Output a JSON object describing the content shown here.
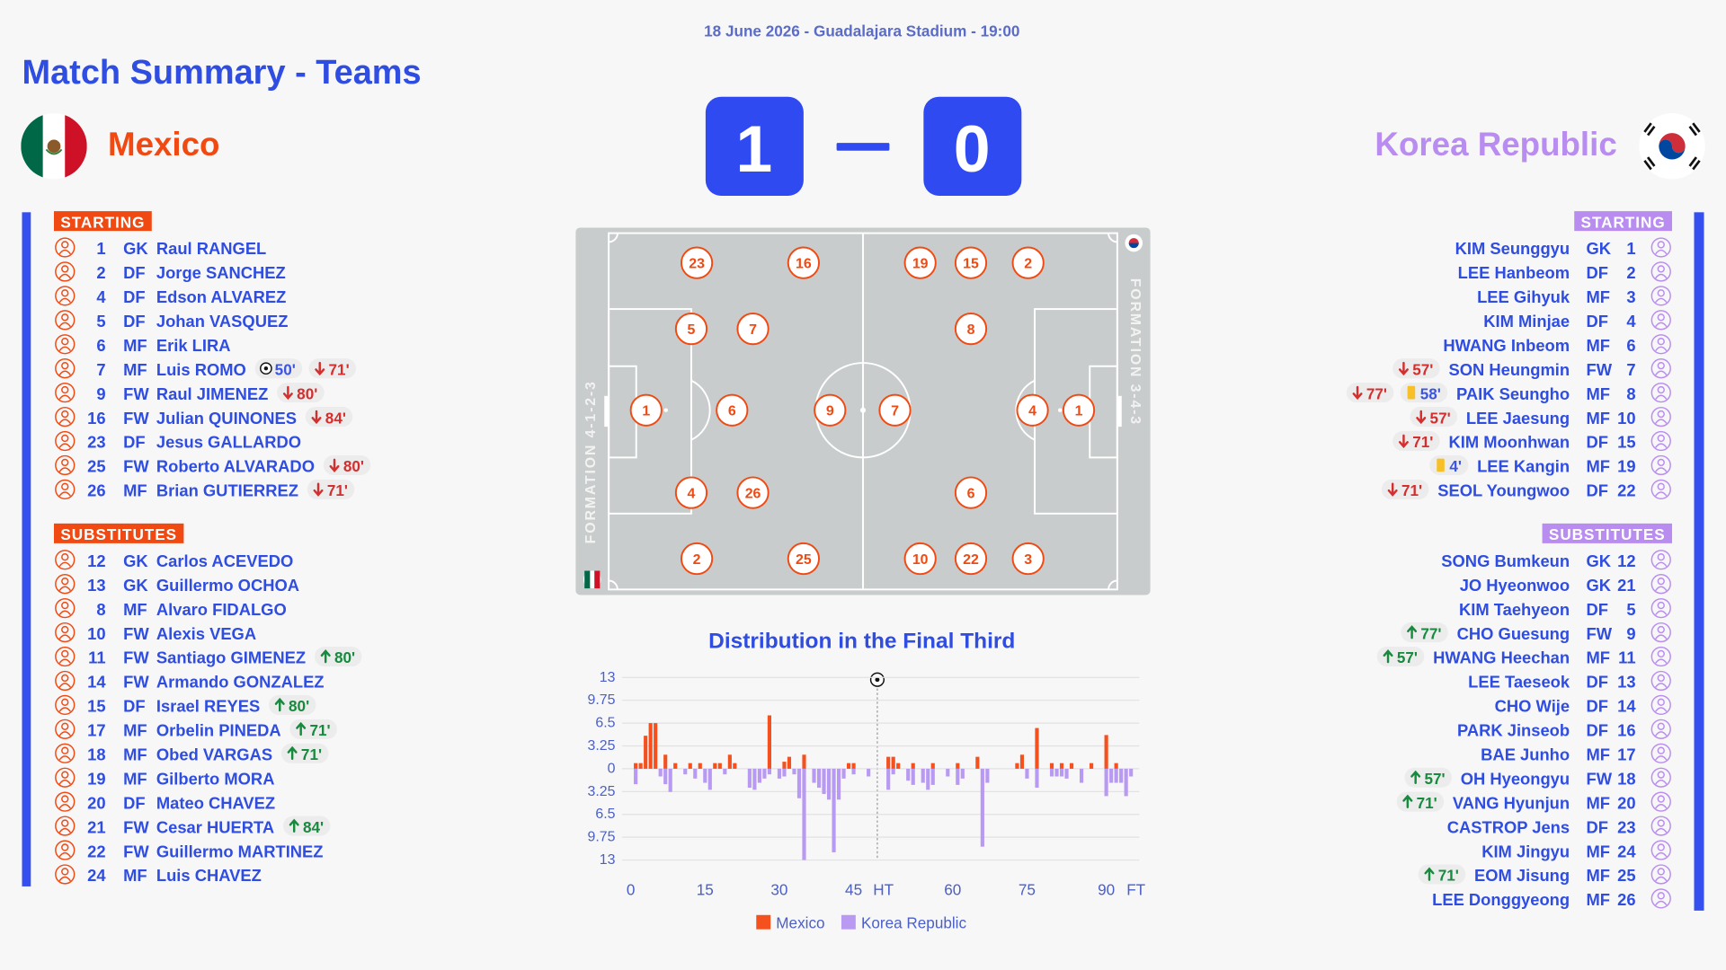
{
  "header": {
    "subtitle": "18 June 2026 - Guadalajara Stadium - 19:00",
    "title": "Match Summary - Teams"
  },
  "score": {
    "home": 1,
    "away": 0
  },
  "home": {
    "name": "Mexico",
    "starting_label": "STARTING",
    "substitutes_label": "SUBSTITUTES",
    "formation": "FORMATION 4-1-2-3",
    "pitch": [
      1,
      23,
      5,
      4,
      2,
      6,
      7,
      26,
      16,
      9,
      25
    ],
    "starting": [
      {
        "number": 1,
        "pos": "GK",
        "name": "Raul RANGEL"
      },
      {
        "number": 2,
        "pos": "DF",
        "name": "Jorge SANCHEZ"
      },
      {
        "number": 4,
        "pos": "DF",
        "name": "Edson ALVAREZ"
      },
      {
        "number": 5,
        "pos": "DF",
        "name": "Johan VASQUEZ"
      },
      {
        "number": 6,
        "pos": "MF",
        "name": "Erik LIRA"
      },
      {
        "number": 7,
        "pos": "MF",
        "name": "Luis ROMO",
        "events": [
          {
            "kind": "goal",
            "minute": "50'"
          },
          {
            "kind": "off",
            "minute": "71'"
          }
        ]
      },
      {
        "number": 9,
        "pos": "FW",
        "name": "Raul JIMENEZ",
        "events": [
          {
            "kind": "off",
            "minute": "80'"
          }
        ]
      },
      {
        "number": 16,
        "pos": "FW",
        "name": "Julian QUINONES",
        "events": [
          {
            "kind": "off",
            "minute": "84'"
          }
        ]
      },
      {
        "number": 23,
        "pos": "DF",
        "name": "Jesus GALLARDO"
      },
      {
        "number": 25,
        "pos": "FW",
        "name": "Roberto ALVARADO",
        "events": [
          {
            "kind": "off",
            "minute": "80'"
          }
        ]
      },
      {
        "number": 26,
        "pos": "MF",
        "name": "Brian GUTIERREZ",
        "events": [
          {
            "kind": "off",
            "minute": "71'"
          }
        ]
      }
    ],
    "substitutes": [
      {
        "number": 12,
        "pos": "GK",
        "name": "Carlos ACEVEDO"
      },
      {
        "number": 13,
        "pos": "GK",
        "name": "Guillermo OCHOA"
      },
      {
        "number": 8,
        "pos": "MF",
        "name": "Alvaro FIDALGO"
      },
      {
        "number": 10,
        "pos": "FW",
        "name": "Alexis VEGA"
      },
      {
        "number": 11,
        "pos": "FW",
        "name": "Santiago GIMENEZ",
        "events": [
          {
            "kind": "on",
            "minute": "80'"
          }
        ]
      },
      {
        "number": 14,
        "pos": "FW",
        "name": "Armando GONZALEZ"
      },
      {
        "number": 15,
        "pos": "DF",
        "name": "Israel REYES",
        "events": [
          {
            "kind": "on",
            "minute": "80'"
          }
        ]
      },
      {
        "number": 17,
        "pos": "MF",
        "name": "Orbelin PINEDA",
        "events": [
          {
            "kind": "on",
            "minute": "71'"
          }
        ]
      },
      {
        "number": 18,
        "pos": "MF",
        "name": "Obed VARGAS",
        "events": [
          {
            "kind": "on",
            "minute": "71'"
          }
        ]
      },
      {
        "number": 19,
        "pos": "MF",
        "name": "Gilberto MORA"
      },
      {
        "number": 20,
        "pos": "DF",
        "name": "Mateo CHAVEZ"
      },
      {
        "number": 21,
        "pos": "FW",
        "name": "Cesar HUERTA",
        "events": [
          {
            "kind": "on",
            "minute": "84'"
          }
        ]
      },
      {
        "number": 22,
        "pos": "FW",
        "name": "Guillermo MARTINEZ"
      },
      {
        "number": 24,
        "pos": "MF",
        "name": "Luis CHAVEZ"
      }
    ]
  },
  "away": {
    "name": "Korea Republic",
    "starting_label": "STARTING",
    "substitutes_label": "SUBSTITUTES",
    "formation": "FORMATION 3-4-3",
    "pitch": [
      1,
      2,
      4,
      3,
      15,
      8,
      6,
      22,
      19,
      7,
      10
    ],
    "starting": [
      {
        "number": 1,
        "pos": "GK",
        "name": "KIM Seunggyu"
      },
      {
        "number": 2,
        "pos": "DF",
        "name": "LEE Hanbeom"
      },
      {
        "number": 3,
        "pos": "MF",
        "name": "LEE Gihyuk"
      },
      {
        "number": 4,
        "pos": "DF",
        "name": "KIM Minjae"
      },
      {
        "number": 6,
        "pos": "MF",
        "name": "HWANG Inbeom"
      },
      {
        "number": 7,
        "pos": "FW",
        "name": "SON Heungmin",
        "events": [
          {
            "kind": "off",
            "minute": "57'"
          }
        ]
      },
      {
        "number": 8,
        "pos": "MF",
        "name": "PAIK Seungho",
        "events": [
          {
            "kind": "off",
            "minute": "77'"
          },
          {
            "kind": "yellow",
            "minute": "58'"
          }
        ]
      },
      {
        "number": 10,
        "pos": "MF",
        "name": "LEE Jaesung",
        "events": [
          {
            "kind": "off",
            "minute": "57'"
          }
        ]
      },
      {
        "number": 15,
        "pos": "DF",
        "name": "KIM Moonhwan",
        "events": [
          {
            "kind": "off",
            "minute": "71'"
          }
        ]
      },
      {
        "number": 19,
        "pos": "MF",
        "name": "LEE Kangin",
        "events": [
          {
            "kind": "yellow",
            "minute": "4'"
          }
        ]
      },
      {
        "number": 22,
        "pos": "DF",
        "name": "SEOL Youngwoo",
        "events": [
          {
            "kind": "off",
            "minute": "71'"
          }
        ]
      }
    ],
    "substitutes": [
      {
        "number": 12,
        "pos": "GK",
        "name": "SONG Bumkeun"
      },
      {
        "number": 21,
        "pos": "GK",
        "name": "JO Hyeonwoo"
      },
      {
        "number": 5,
        "pos": "DF",
        "name": "KIM Taehyeon"
      },
      {
        "number": 9,
        "pos": "FW",
        "name": "CHO Guesung",
        "events": [
          {
            "kind": "on",
            "minute": "77'"
          }
        ]
      },
      {
        "number": 11,
        "pos": "MF",
        "name": "HWANG Heechan",
        "events": [
          {
            "kind": "on",
            "minute": "57'"
          }
        ]
      },
      {
        "number": 13,
        "pos": "DF",
        "name": "LEE Taeseok"
      },
      {
        "number": 14,
        "pos": "DF",
        "name": "CHO Wije"
      },
      {
        "number": 16,
        "pos": "DF",
        "name": "PARK Jinseob"
      },
      {
        "number": 17,
        "pos": "MF",
        "name": "BAE Junho"
      },
      {
        "number": 18,
        "pos": "FW",
        "name": "OH Hyeongyu",
        "events": [
          {
            "kind": "on",
            "minute": "57'"
          }
        ]
      },
      {
        "number": 20,
        "pos": "MF",
        "name": "VANG Hyunjun",
        "events": [
          {
            "kind": "on",
            "minute": "71'"
          }
        ]
      },
      {
        "number": 23,
        "pos": "DF",
        "name": "CASTROP Jens"
      },
      {
        "number": 24,
        "pos": "MF",
        "name": "KIM Jingyu"
      },
      {
        "number": 25,
        "pos": "MF",
        "name": "EOM Jisung",
        "events": [
          {
            "kind": "on",
            "minute": "71'"
          }
        ]
      },
      {
        "number": 26,
        "pos": "MF",
        "name": "LEE Donggyeong"
      }
    ]
  },
  "chart_data": {
    "type": "bar",
    "title": "Distribution in the Final Third",
    "categories": [
      "0",
      null,
      null,
      null,
      null,
      null,
      null,
      null,
      null,
      null,
      null,
      null,
      null,
      null,
      null,
      "15",
      null,
      null,
      null,
      null,
      null,
      null,
      null,
      null,
      null,
      null,
      null,
      null,
      null,
      null,
      "30",
      null,
      null,
      null,
      null,
      null,
      null,
      null,
      null,
      null,
      null,
      null,
      null,
      null,
      null,
      "45",
      null,
      null,
      null,
      null,
      null,
      "HT",
      null,
      null,
      null,
      null,
      null,
      null,
      null,
      null,
      null,
      null,
      null,
      null,
      null,
      "60",
      null,
      null,
      null,
      null,
      null,
      null,
      null,
      null,
      null,
      null,
      null,
      null,
      null,
      null,
      "75",
      null,
      null,
      null,
      null,
      null,
      null,
      null,
      null,
      null,
      null,
      null,
      null,
      null,
      null,
      null,
      "90",
      null,
      null,
      null,
      null,
      null,
      "FT"
    ],
    "series": [
      {
        "name": "Mexico",
        "color": "#f4511e",
        "values": [
          0,
          0.8,
          0.8,
          4.7,
          6.5,
          6.5,
          0,
          2,
          0,
          0.8,
          0,
          0,
          0.8,
          0,
          0.8,
          0,
          0,
          0.8,
          0.8,
          0,
          2,
          0.8,
          0,
          0,
          0,
          0,
          0,
          0,
          7.6,
          0,
          0,
          1,
          1.7,
          0,
          0,
          2,
          0,
          0,
          0,
          0,
          0,
          0,
          0,
          0,
          0.8,
          0.8,
          0,
          0,
          0,
          0,
          0,
          0,
          1.7,
          1.7,
          0.8,
          0,
          0,
          0.8,
          0,
          0,
          0,
          0.8,
          0,
          0,
          0,
          0,
          0.8,
          0,
          0,
          0,
          1.7,
          0,
          0,
          0,
          0,
          0,
          0,
          0,
          0.8,
          2,
          0,
          0,
          5.8,
          0,
          0,
          0.8,
          0,
          0.8,
          0,
          0.8,
          0,
          0,
          0,
          0.8,
          0,
          0,
          4.8,
          0,
          0.8,
          0,
          0,
          0,
          0
        ]
      },
      {
        "name": "Korea Republic",
        "color": "#b99af2",
        "values": [
          0,
          -2.2,
          0,
          0,
          0,
          0,
          -1.1,
          -2.2,
          -3.3,
          0,
          0,
          -0.8,
          0,
          -1.4,
          0,
          -2,
          -3,
          0,
          0,
          -0.8,
          0,
          0,
          0,
          0,
          -2.7,
          -3,
          -2,
          -1.4,
          -0.8,
          0,
          -1.4,
          -1.1,
          0,
          -0.8,
          -4.2,
          -13,
          0,
          -2,
          -2.7,
          -3.6,
          -4.4,
          -11.9,
          -4.4,
          -1.4,
          0,
          -0.8,
          0,
          0,
          -1.1,
          0,
          0,
          0,
          -3,
          -0.8,
          0,
          0,
          -1.7,
          -2.3,
          0,
          -2,
          -3,
          -2.3,
          0,
          0,
          -1.1,
          0,
          -2.3,
          -1.4,
          0,
          0,
          0,
          -11.1,
          -2,
          0,
          0,
          0,
          0,
          0,
          0,
          0,
          -1.4,
          0,
          -2.7,
          0,
          0,
          -1.1,
          -1.1,
          -1.1,
          -1.4,
          0,
          0,
          -2,
          0,
          0,
          0,
          0,
          -3.9,
          -2,
          -2,
          -2,
          -3.9,
          -1.1,
          0
        ]
      }
    ],
    "ylim": [
      -13,
      13
    ],
    "yticks": [
      13,
      9.75,
      6.5,
      3.25,
      0,
      {
        "value": -3.25,
        "label": "3.25"
      },
      {
        "value": -6.5,
        "label": "6.5"
      },
      {
        "value": -9.75,
        "label": "9.75"
      },
      {
        "value": -13,
        "label": "13"
      }
    ],
    "grid": true,
    "legend": "bottom"
  }
}
